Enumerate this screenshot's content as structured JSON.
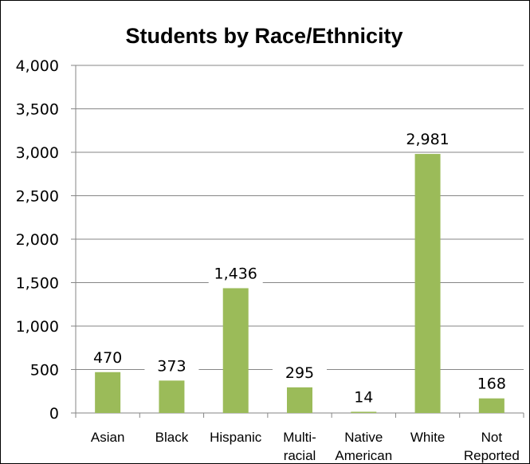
{
  "chart_data": {
    "type": "bar",
    "title": "Students by Race/Ethnicity",
    "categories": [
      [
        "Asian"
      ],
      [
        "Black"
      ],
      [
        "Hispanic"
      ],
      [
        "Multi-",
        "racial"
      ],
      [
        "Native",
        "American"
      ],
      [
        "White"
      ],
      [
        "Not",
        "Reported"
      ]
    ],
    "values": [
      470,
      373,
      1436,
      295,
      14,
      2981,
      168
    ],
    "data_labels": [
      "470",
      "373",
      "1,436",
      "295",
      "14",
      "2,981",
      "168"
    ],
    "y_ticks": [
      0,
      500,
      1000,
      1500,
      2000,
      2500,
      3000,
      3500,
      4000
    ],
    "y_tick_labels": [
      "0",
      "500",
      "1,000",
      "1,500",
      "2,000",
      "2,500",
      "3,000",
      "3,500",
      "4,000"
    ],
    "ylim": [
      0,
      4000
    ],
    "xlabel": "",
    "ylabel": "",
    "grid": true,
    "legend": "none",
    "colors": {
      "bar": "#9bbb59",
      "grid": "#868686",
      "axis": "#868686"
    }
  }
}
